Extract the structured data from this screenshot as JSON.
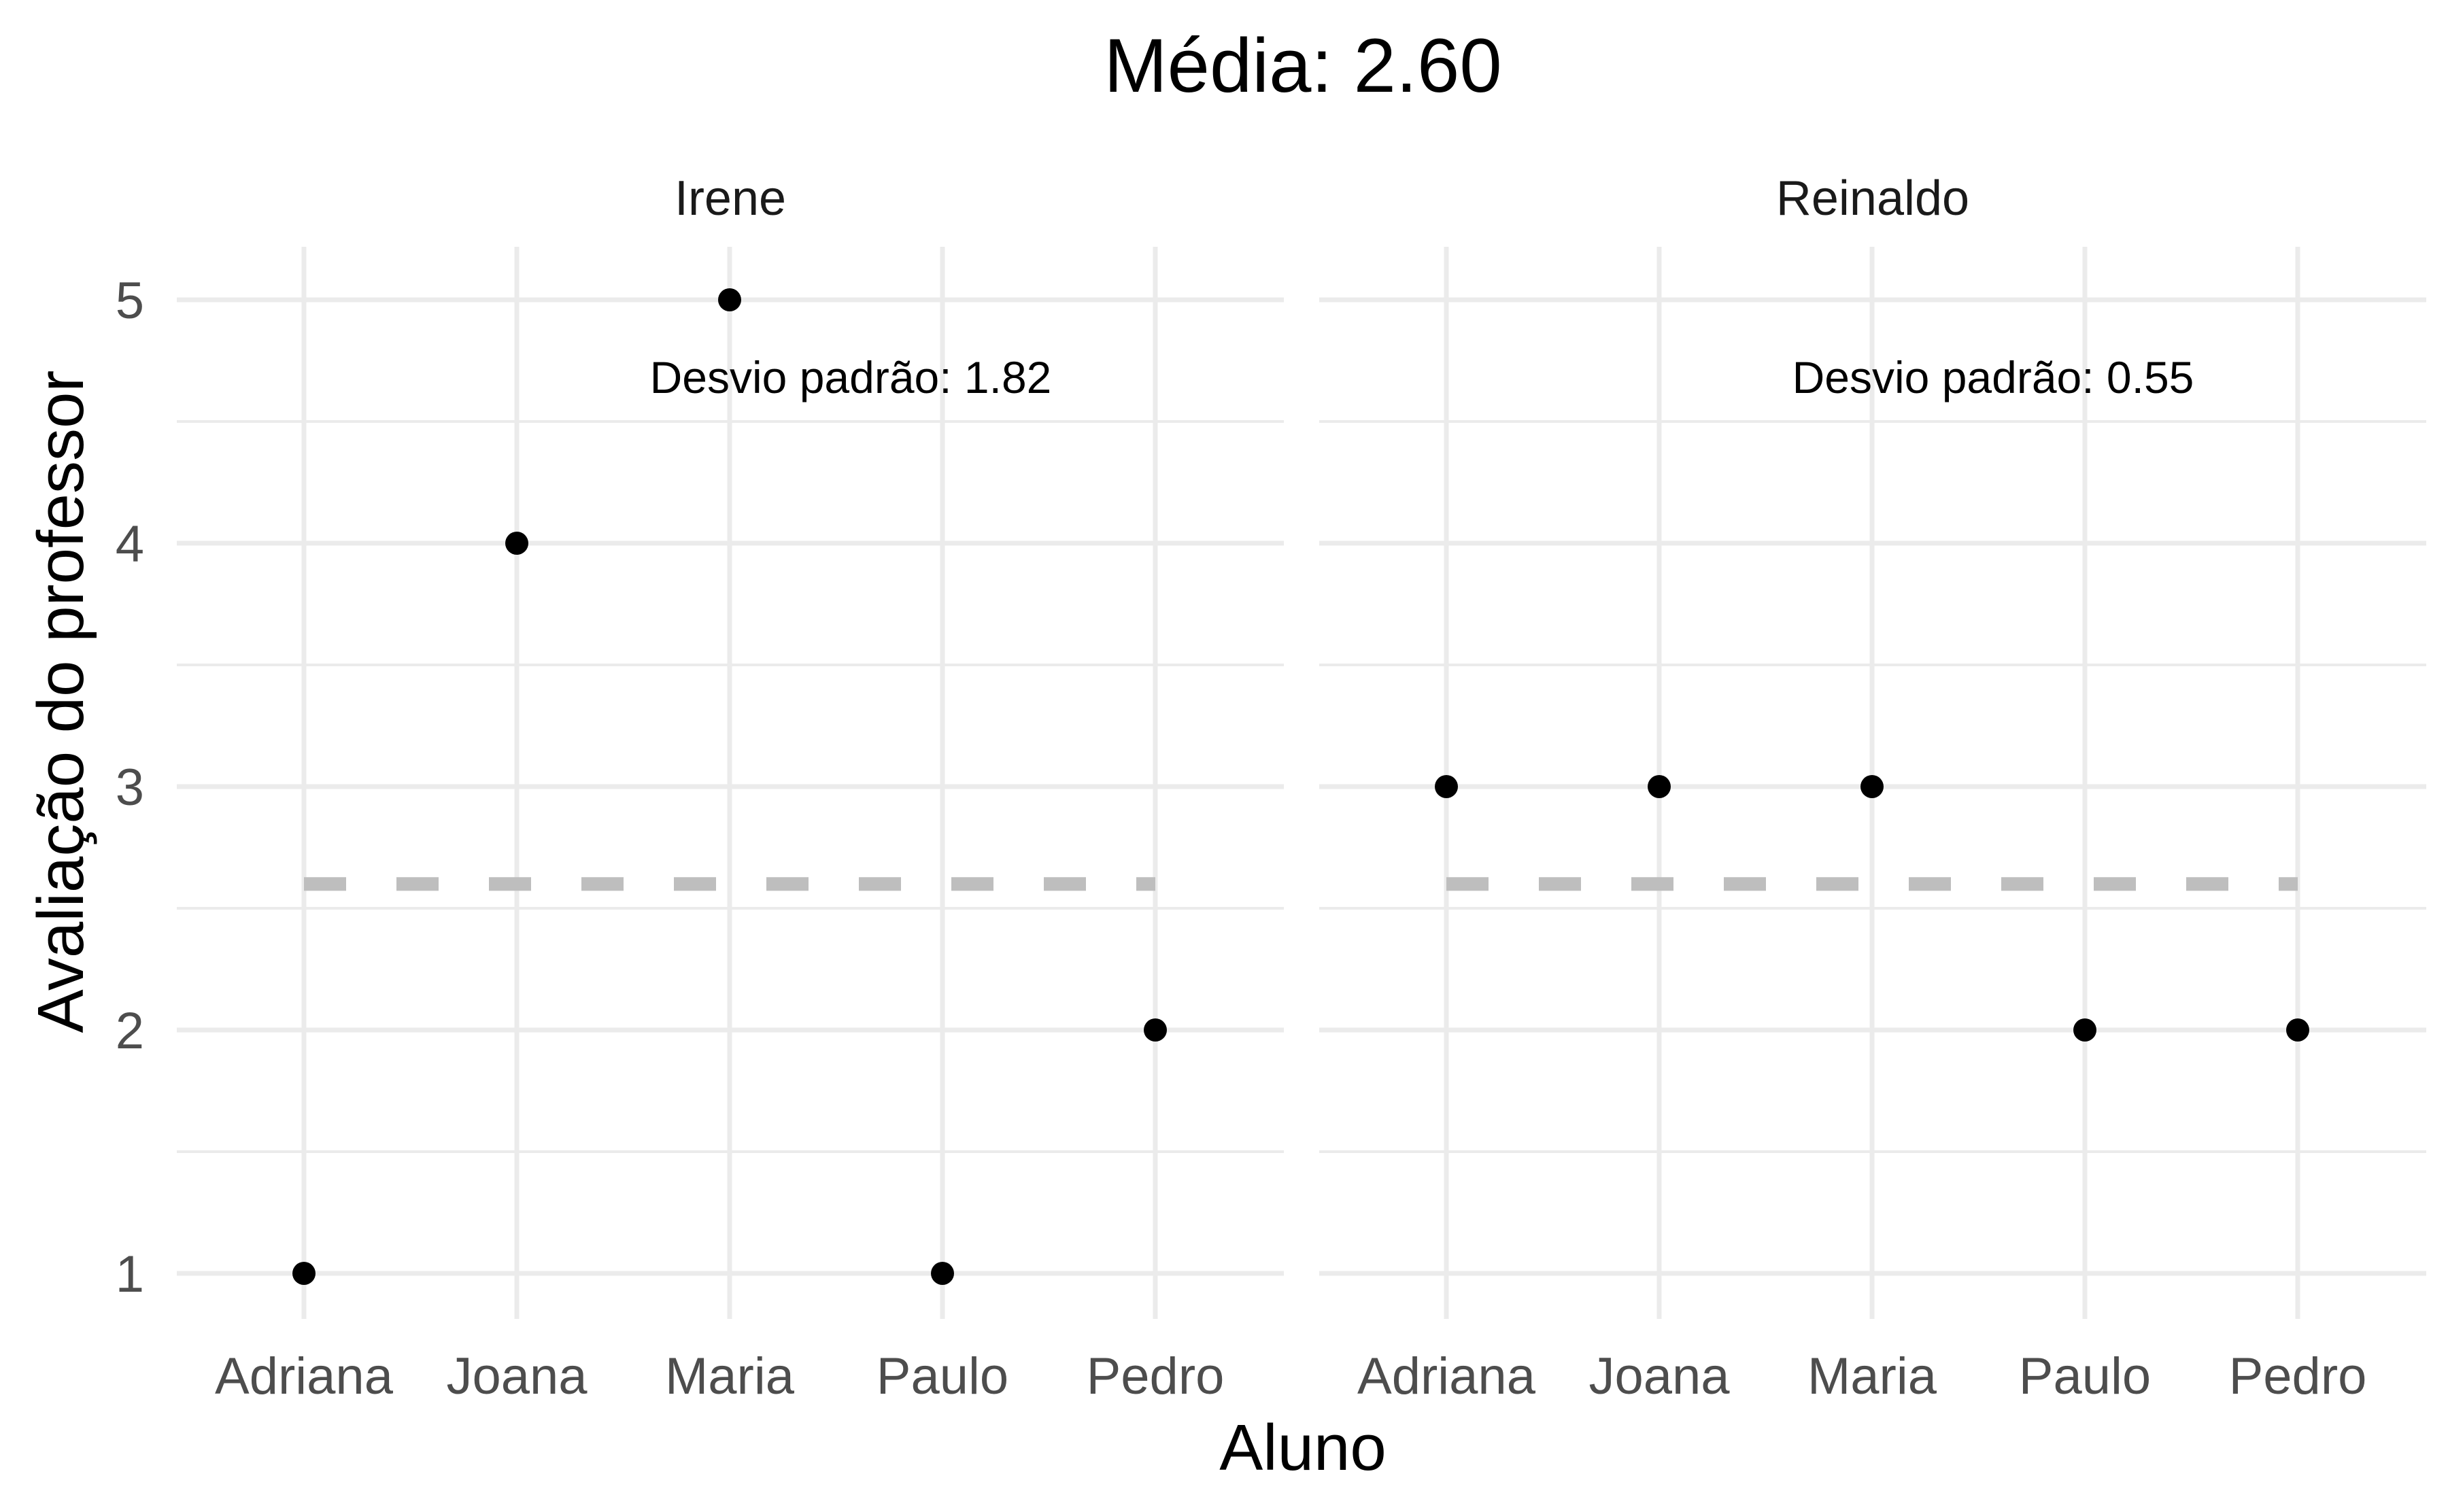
{
  "chart_data": {
    "type": "scatter",
    "title": "Média: 2.60",
    "xlabel": "Aluno",
    "ylabel": "Avaliação do professor",
    "categories": [
      "Adriana",
      "Joana",
      "Maria",
      "Paulo",
      "Pedro"
    ],
    "y_ticks": [
      "1",
      "2",
      "3",
      "4",
      "5"
    ],
    "ylim": [
      0.8,
      5.2
    ],
    "mean": 2.6,
    "grid": true,
    "facets": [
      {
        "label": "Irene",
        "values": [
          1,
          4,
          5,
          1,
          2
        ],
        "annotation": "Desvio padrão: 1.82"
      },
      {
        "label": "Reinaldo",
        "values": [
          3,
          3,
          3,
          2,
          2
        ],
        "annotation": "Desvio padrão: 0.55"
      }
    ]
  },
  "colors": {
    "points": "#000000",
    "mean_line": "#bebebe",
    "grid": "#ebebeb",
    "tick_text": "#4d4d4d"
  }
}
